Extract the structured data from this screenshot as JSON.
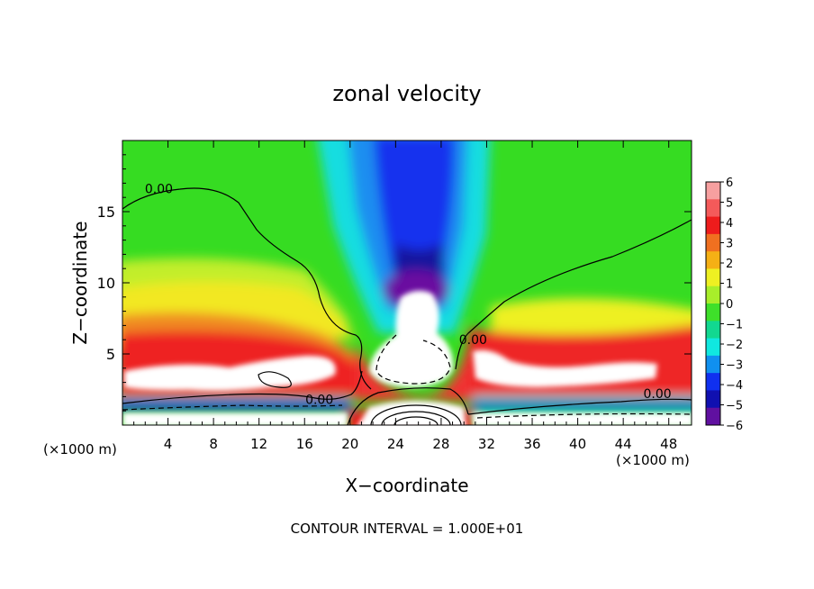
{
  "chart_data": {
    "type": "heatmap",
    "title": "zonal velocity",
    "xlabel": "X−coordinate",
    "ylabel": "Z−coordinate",
    "x_unit_left": "(×1000 m)",
    "x_unit_right": "(×1000 m)",
    "xlim": [
      0,
      50
    ],
    "ylim": [
      0,
      20
    ],
    "x_ticks": [
      4,
      8,
      12,
      16,
      20,
      24,
      28,
      32,
      36,
      40,
      44,
      48
    ],
    "y_ticks": [
      5,
      10,
      15
    ],
    "footer": "CONTOUR INTERVAL = 1.000E+01",
    "contour_labels": [
      {
        "text": "0.00",
        "x": 3.2,
        "y": 16.3
      },
      {
        "text": "0.00",
        "x": 17.3,
        "y": 1.5
      },
      {
        "text": "0.00",
        "x": 30.8,
        "y": 5.7
      },
      {
        "text": "0.00",
        "x": 47.0,
        "y": 1.9
      }
    ],
    "colorbar": {
      "range": [
        -6,
        6
      ],
      "labels": [
        "6",
        "5",
        "4",
        "3",
        "2",
        "1",
        "0",
        "−1",
        "−2",
        "−3",
        "−4",
        "−5",
        "−6"
      ],
      "colors": [
        "#f7a0a0",
        "#f45a5a",
        "#ee1c1c",
        "#f07020",
        "#f5b015",
        "#eef022",
        "#a8ee2a",
        "#3ee02a",
        "#12d890",
        "#10e8e0",
        "#1090f0",
        "#1030f0",
        "#1010b0",
        "#6010a0"
      ]
    }
  }
}
